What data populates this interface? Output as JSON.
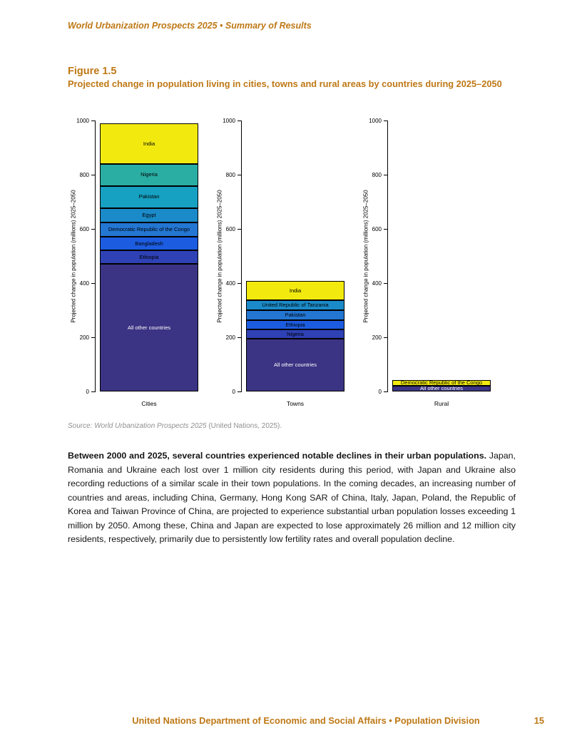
{
  "page": {
    "running_head": "World Urbanization Prospects 2025 • Summary of Results",
    "figure_label": "Figure 1.5",
    "figure_title": "Projected change in population living in cities, towns and rural areas by countries during 2025–2050",
    "source_italic": "Source: World Urbanization Prospects 2025",
    "source_regular": " (United Nations, 2025).",
    "body_bold": "Between 2000 and 2025, several countries experienced notable declines in their urban populations.",
    "body_regular": " Japan, Romania and Ukraine each lost over 1 million city residents during this period, with Japan and Ukraine also recording reductions of a similar scale in their town populations. In the coming decades, an increasing number of countries and areas, including China, Germany, Hong Kong SAR of China, Italy, Japan, Poland, the Republic of Korea and Taiwan Province of China, are projected to experience substantial urban population losses exceeding 1 million by 2050. Among these, China and Japan are expected to lose approximately 26 million and 12 million city residents, respectively, primarily due to persistently low fertility rates and overall population decline.",
    "footer_text": "United Nations Department of Economic and Social Affairs • Population Division",
    "page_number": "15",
    "accent_color": "#BE7815"
  },
  "chart_data": [
    {
      "type": "bar",
      "title": "Cities",
      "ylabel": "Projected change in population (millions) 2025–2050",
      "ylim": [
        0,
        1000
      ],
      "yticks": [
        0,
        200,
        400,
        600,
        800,
        1000
      ],
      "grid": false,
      "legend": "labels inside segments",
      "segments": [
        {
          "label": "All other countries",
          "value": 472,
          "color": "#3b3383",
          "text_color": "#ffffff"
        },
        {
          "label": "Ethiopia",
          "value": 49,
          "color": "#2e41b5",
          "text_color": "#000000"
        },
        {
          "label": "Bangladesh",
          "value": 51,
          "color": "#1c5ce0",
          "text_color": "#000000"
        },
        {
          "label": "Democratic Republic of the Congo",
          "value": 53,
          "color": "#2376d2",
          "text_color": "#000000"
        },
        {
          "label": "Egypt",
          "value": 52,
          "color": "#1b8ac8",
          "text_color": "#000000"
        },
        {
          "label": "Pakistan",
          "value": 82,
          "color": "#16a0c2",
          "text_color": "#000000"
        },
        {
          "label": "Nigeria",
          "value": 81,
          "color": "#2aaea4",
          "text_color": "#000000"
        },
        {
          "label": "India",
          "value": 150,
          "color": "#f2ea0f",
          "text_color": "#000000"
        }
      ]
    },
    {
      "type": "bar",
      "title": "Towns",
      "ylabel": "Projected change in population (millions) 2025–2050",
      "ylim": [
        0,
        1000
      ],
      "yticks": [
        0,
        200,
        400,
        600,
        800,
        1000
      ],
      "grid": false,
      "legend": "labels inside segments",
      "segments": [
        {
          "label": "All other countries",
          "value": 196,
          "color": "#3b3383",
          "text_color": "#ffffff"
        },
        {
          "label": "Nigeria",
          "value": 32,
          "color": "#2e41b5",
          "text_color": "#000000"
        },
        {
          "label": "Ethiopia",
          "value": 34,
          "color": "#1c5ce0",
          "text_color": "#000000"
        },
        {
          "label": "Pakistan",
          "value": 38,
          "color": "#2376d2",
          "text_color": "#000000"
        },
        {
          "label": "United Republic of Tanzania",
          "value": 38,
          "color": "#1b8ac8",
          "text_color": "#000000"
        },
        {
          "label": "India",
          "value": 69,
          "color": "#f2ea0f",
          "text_color": "#000000"
        }
      ]
    },
    {
      "type": "bar",
      "title": "Rural",
      "ylabel": "Projected change in population (millions) 2025–2050",
      "ylim": [
        0,
        1000
      ],
      "yticks": [
        0,
        200,
        400,
        600,
        800,
        1000
      ],
      "grid": false,
      "legend": "labels inside segments",
      "segments": [
        {
          "label": "All other countries",
          "value": 20,
          "color": "#3b3383",
          "text_color": "#ffffff"
        },
        {
          "label": "Democratic Republic of the Congo",
          "value": 22,
          "color": "#f2ea0f",
          "text_color": "#000000"
        }
      ]
    }
  ]
}
